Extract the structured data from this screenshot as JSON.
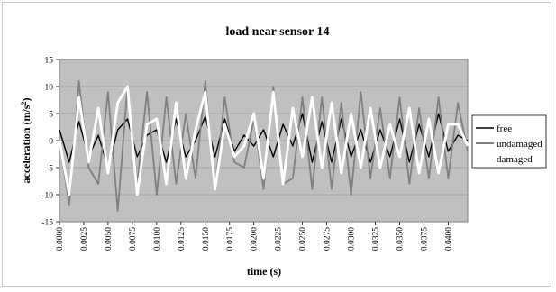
{
  "chart_data": {
    "type": "line",
    "title": "load near sensor 14",
    "xlabel": "time (s)",
    "ylabel": "acceleration (m/s",
    "ylabel_sup": "2",
    "ylabel_close": ")",
    "xlim": [
      0,
      0.042
    ],
    "ylim": [
      -15,
      15
    ],
    "y_ticks": [
      15,
      10,
      5,
      0,
      -5,
      -10,
      -15
    ],
    "y_tick_labels": [
      "15",
      "10",
      "5",
      "0",
      "-5",
      "-10",
      "-15"
    ],
    "x_ticks": [
      0,
      0.0025,
      0.005,
      0.0075,
      0.01,
      0.0125,
      0.015,
      0.0175,
      0.02,
      0.0225,
      0.025,
      0.0275,
      0.03,
      0.0325,
      0.035,
      0.0375,
      0.04
    ],
    "x_tick_labels": [
      "0.0000",
      "0.0025",
      "0.0050",
      "0.0075",
      "0.0100",
      "0.0125",
      "0.0150",
      "0.0175",
      "0.0200",
      "0.0225",
      "0.0250",
      "0.0275",
      "0.0300",
      "0.0325",
      "0.0350",
      "0.0375",
      "0.0400"
    ],
    "grid": true,
    "legend_position": "right",
    "background": "#c0c0c0",
    "series": [
      {
        "name": "free",
        "color": "#000000",
        "x": [
          0,
          0.001,
          0.002,
          0.003,
          0.004,
          0.005,
          0.006,
          0.007,
          0.008,
          0.009,
          0.01,
          0.011,
          0.012,
          0.013,
          0.014,
          0.015,
          0.016,
          0.017,
          0.018,
          0.019,
          0.02,
          0.021,
          0.022,
          0.023,
          0.024,
          0.025,
          0.026,
          0.027,
          0.028,
          0.029,
          0.03,
          0.031,
          0.032,
          0.033,
          0.034,
          0.035,
          0.036,
          0.037,
          0.038,
          0.039,
          0.04,
          0.041,
          0.042
        ],
        "y": [
          2,
          -4,
          3.5,
          -3,
          1,
          -5,
          2,
          4,
          -3,
          1,
          2,
          -4,
          4,
          -3,
          0,
          4.5,
          -3,
          4,
          -2,
          1,
          -1,
          2,
          -3,
          3,
          -1,
          5,
          -4,
          3.5,
          -4,
          4,
          -3,
          2,
          -4,
          2,
          -3,
          4,
          -4,
          3,
          -3,
          5,
          -2,
          1,
          0
        ]
      },
      {
        "name": "undamaged",
        "color": "#808080",
        "x": [
          0,
          0.001,
          0.002,
          0.003,
          0.004,
          0.005,
          0.006,
          0.007,
          0.008,
          0.009,
          0.01,
          0.011,
          0.012,
          0.013,
          0.014,
          0.015,
          0.016,
          0.017,
          0.018,
          0.019,
          0.02,
          0.021,
          0.022,
          0.023,
          0.024,
          0.025,
          0.026,
          0.027,
          0.028,
          0.029,
          0.03,
          0.031,
          0.032,
          0.033,
          0.034,
          0.035,
          0.036,
          0.037,
          0.038,
          0.039,
          0.04,
          0.041,
          0.042
        ],
        "y": [
          0,
          -12,
          11,
          -5,
          -8,
          9,
          -13,
          10,
          -8,
          9,
          -10,
          8,
          -8,
          5,
          -7,
          11,
          -9,
          8,
          -4,
          -5,
          4,
          -9,
          10,
          -8,
          -7,
          8,
          -9,
          8,
          -9,
          7,
          -10,
          9,
          -7,
          6,
          -7,
          8,
          -8,
          6,
          -7,
          8,
          -7,
          7,
          -2
        ]
      },
      {
        "name": "damaged",
        "color": "#ffffff",
        "x": [
          0,
          0.001,
          0.002,
          0.003,
          0.004,
          0.005,
          0.006,
          0.007,
          0.008,
          0.009,
          0.01,
          0.011,
          0.012,
          0.013,
          0.014,
          0.015,
          0.016,
          0.017,
          0.018,
          0.019,
          0.02,
          0.021,
          0.022,
          0.023,
          0.024,
          0.025,
          0.026,
          0.027,
          0.028,
          0.029,
          0.03,
          0.031,
          0.032,
          0.033,
          0.034,
          0.035,
          0.036,
          0.037,
          0.038,
          0.039,
          0.04,
          0.041,
          0.042
        ],
        "y": [
          0,
          -10,
          8,
          -4,
          6,
          -6,
          7,
          10,
          -10,
          3,
          4,
          -8,
          7,
          -7,
          2,
          9,
          -9,
          3,
          -3,
          -1,
          5,
          -7,
          9,
          -8,
          6,
          -3,
          8,
          -5,
          7,
          -6,
          5,
          -5,
          6,
          -5,
          3,
          -3,
          6,
          -6,
          4,
          -6,
          3,
          3,
          -1
        ]
      }
    ]
  }
}
